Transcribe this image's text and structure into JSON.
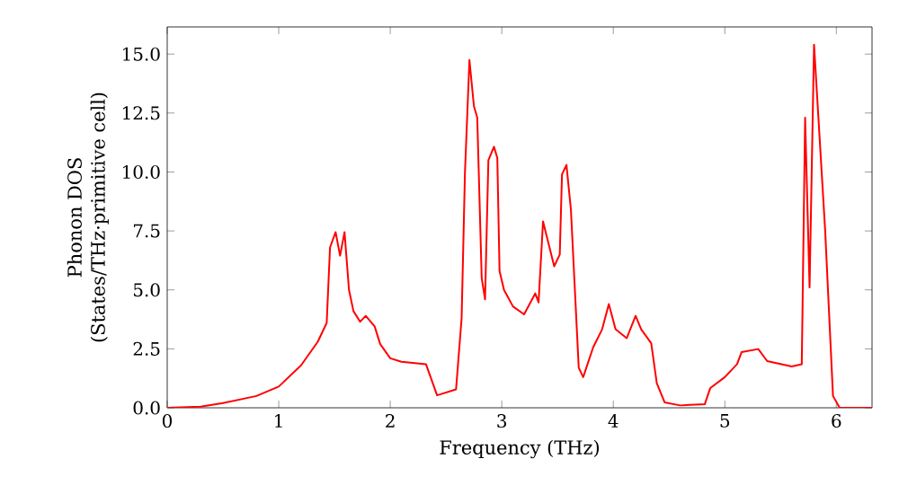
{
  "chart_data": {
    "type": "line",
    "xlabel": "Frequency (THz)",
    "ylabel": "Phonon DOS\n(States/THz·primitive cell)",
    "xlim": [
      0,
      6.32
    ],
    "ylim": [
      0,
      16.15
    ],
    "xticks": [
      0,
      1,
      2,
      3,
      4,
      5,
      6
    ],
    "yticks": [
      {
        "value": 0,
        "label": "0.0"
      },
      {
        "value": 2.5,
        "label": "2.5"
      },
      {
        "value": 5,
        "label": "5.0"
      },
      {
        "value": 7.5,
        "label": "7.5"
      },
      {
        "value": 10,
        "label": "10.0"
      },
      {
        "value": 12.5,
        "label": "12.5"
      },
      {
        "value": 15,
        "label": "15.0"
      }
    ],
    "grid": false,
    "marker": "none",
    "line_style": "solid",
    "series": [
      {
        "color": "#ff0000",
        "x": [
          0,
          0.3,
          0.5,
          0.8,
          1.0,
          1.2,
          1.35,
          1.43,
          1.46,
          1.51,
          1.55,
          1.59,
          1.63,
          1.67,
          1.73,
          1.78,
          1.86,
          1.91,
          2.0,
          2.1,
          2.32,
          2.42,
          2.59,
          2.64,
          2.67,
          2.71,
          2.75,
          2.78,
          2.82,
          2.85,
          2.88,
          2.93,
          2.96,
          2.98,
          3.02,
          3.1,
          3.2,
          3.3,
          3.33,
          3.37,
          3.47,
          3.52,
          3.54,
          3.58,
          3.62,
          3.69,
          3.73,
          3.82,
          3.9,
          3.96,
          4.02,
          4.12,
          4.2,
          4.25,
          4.34,
          4.39,
          4.46,
          4.6,
          4.82,
          4.87,
          5.0,
          5.11,
          5.15,
          5.3,
          5.38,
          5.6,
          5.69,
          5.72,
          5.76,
          5.8,
          5.9,
          5.97,
          6.03,
          6.32
        ],
        "values": [
          0,
          0.05,
          0.2,
          0.5,
          0.9,
          1.8,
          2.8,
          3.6,
          6.8,
          7.45,
          6.45,
          7.45,
          5.0,
          4.1,
          3.65,
          3.9,
          3.45,
          2.7,
          2.1,
          1.95,
          1.85,
          0.53,
          0.78,
          3.8,
          10.0,
          14.75,
          12.8,
          12.3,
          5.5,
          4.6,
          10.5,
          11.07,
          10.6,
          5.8,
          5.0,
          4.3,
          3.96,
          4.85,
          4.47,
          7.9,
          6.0,
          6.5,
          9.9,
          10.3,
          8.4,
          1.7,
          1.3,
          2.57,
          3.33,
          4.4,
          3.33,
          2.95,
          3.9,
          3.33,
          2.74,
          1.04,
          0.23,
          0.1,
          0.15,
          0.84,
          1.3,
          1.85,
          2.36,
          2.49,
          1.98,
          1.75,
          1.85,
          12.3,
          5.1,
          15.4,
          7.5,
          0.5,
          0,
          0
        ]
      }
    ]
  }
}
